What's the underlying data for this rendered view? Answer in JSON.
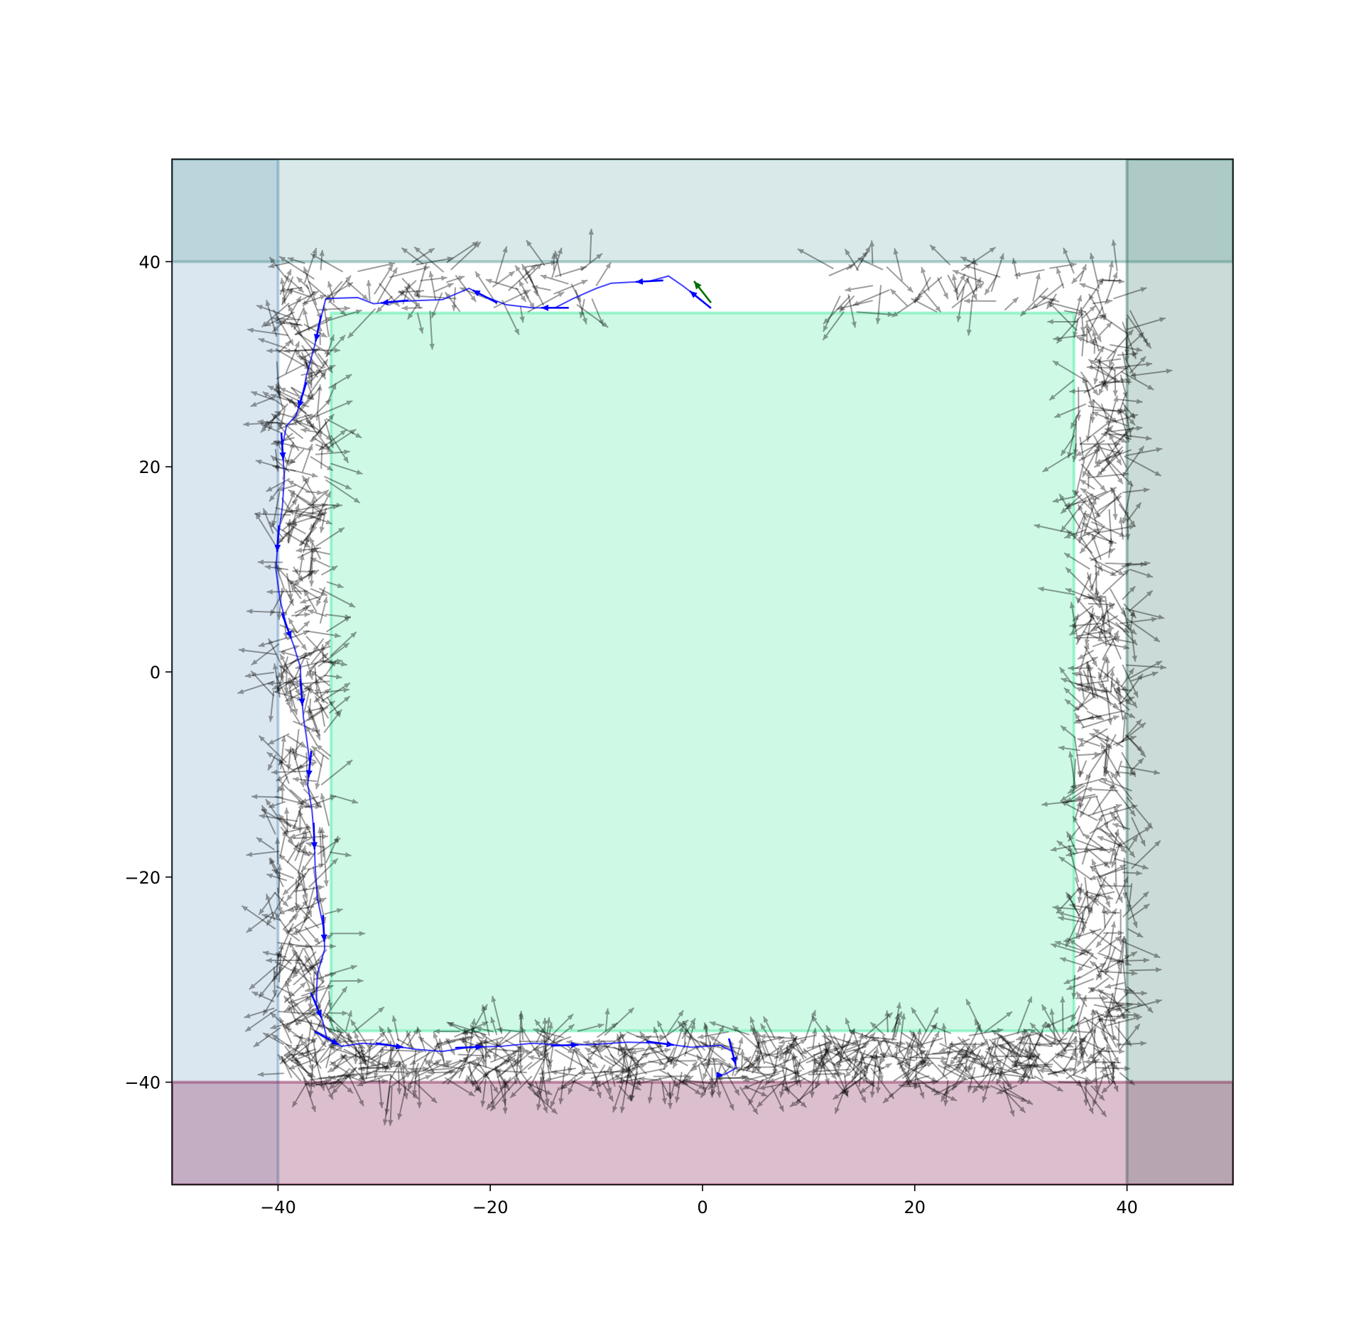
{
  "chart_data": {
    "type": "quiver",
    "title": "",
    "xlabel": "",
    "ylabel": "",
    "xlim": [
      -50,
      50
    ],
    "ylim": [
      -50,
      50
    ],
    "grid": false,
    "legend": "none",
    "x_ticks": [
      {
        "value": -40,
        "label": "−40"
      },
      {
        "value": -20,
        "label": "−20"
      },
      {
        "value": 0,
        "label": "0"
      },
      {
        "value": 20,
        "label": "20"
      },
      {
        "value": 40,
        "label": "40"
      }
    ],
    "y_ticks": [
      {
        "value": 40,
        "label": "40"
      },
      {
        "value": 20,
        "label": "20"
      },
      {
        "value": 0,
        "label": "0"
      },
      {
        "value": -20,
        "label": "−20"
      },
      {
        "value": -40,
        "label": "−40"
      }
    ],
    "regions": [
      {
        "name": "left-band",
        "x": [
          -50,
          -40
        ],
        "y": [
          -50,
          50
        ],
        "color": "#4a86b4",
        "opacity": 0.2
      },
      {
        "name": "top-band",
        "x": [
          -50,
          50
        ],
        "y": [
          40,
          50
        ],
        "color": "#3f8a8a",
        "opacity": 0.2
      },
      {
        "name": "right-band",
        "x": [
          40,
          50
        ],
        "y": [
          -50,
          50
        ],
        "color": "#2e6e60",
        "opacity": 0.25
      },
      {
        "name": "bottom-band",
        "x": [
          -50,
          50
        ],
        "y": [
          -50,
          -40
        ],
        "color": "#8a2a5c",
        "opacity": 0.3
      },
      {
        "name": "inner-goal-square",
        "x": [
          -35,
          35
        ],
        "y": [
          -35,
          35
        ],
        "color": "#45eaa0",
        "opacity": 0.27
      }
    ],
    "trajectory": {
      "color": "#0000ff",
      "points": [
        [
          -0.2,
          36.3
        ],
        [
          -0.8,
          36.8
        ],
        [
          -1.8,
          37.6
        ],
        [
          -3.2,
          38.6
        ],
        [
          -5,
          38.1
        ],
        [
          -8.6,
          37.9
        ],
        [
          -10,
          37.4
        ],
        [
          -12.2,
          36.4
        ],
        [
          -13.9,
          35.5
        ],
        [
          -16,
          35.5
        ],
        [
          -18.5,
          35.8
        ],
        [
          -20.5,
          36.6
        ],
        [
          -22,
          37.4
        ],
        [
          -24.5,
          36.3
        ],
        [
          -27,
          36.2
        ],
        [
          -29,
          36.1
        ],
        [
          -31,
          35.9
        ],
        [
          -32.5,
          36.5
        ],
        [
          -35.5,
          36.4
        ],
        [
          -36.2,
          33.5
        ],
        [
          -36.5,
          32
        ],
        [
          -37.3,
          29
        ],
        [
          -37.7,
          27
        ],
        [
          -38.3,
          25
        ],
        [
          -39.2,
          24
        ],
        [
          -39.6,
          22
        ],
        [
          -39.4,
          19
        ],
        [
          -39.6,
          16
        ],
        [
          -40,
          13
        ],
        [
          -40.2,
          10
        ],
        [
          -39.8,
          7
        ],
        [
          -39.2,
          4.5
        ],
        [
          -38.5,
          2.5
        ],
        [
          -37.9,
          0.5
        ],
        [
          -37.8,
          -2
        ],
        [
          -37.6,
          -4.5
        ],
        [
          -37.3,
          -6.5
        ],
        [
          -37,
          -9
        ],
        [
          -37.2,
          -11
        ],
        [
          -36.8,
          -13.5
        ],
        [
          -36.6,
          -16
        ],
        [
          -36.5,
          -19
        ],
        [
          -36.3,
          -22
        ],
        [
          -35.7,
          -25
        ],
        [
          -35.6,
          -27
        ],
        [
          -36.3,
          -29.5
        ],
        [
          -36.4,
          -32.5
        ],
        [
          -35.8,
          -34
        ],
        [
          -35.4,
          -35.7
        ],
        [
          -34,
          -36.5
        ],
        [
          -32,
          -36.2
        ],
        [
          -29.5,
          -36.4
        ],
        [
          -27,
          -36.8
        ],
        [
          -24.5,
          -37
        ],
        [
          -22,
          -36.6
        ],
        [
          -19,
          -36.5
        ],
        [
          -16,
          -36.2
        ],
        [
          -13,
          -36.4
        ],
        [
          -10,
          -36.3
        ],
        [
          -7,
          -36.1
        ],
        [
          -4,
          -36.2
        ],
        [
          -1,
          -36.6
        ],
        [
          1.7,
          -36.4
        ],
        [
          2.8,
          -37
        ],
        [
          3.2,
          -38.6
        ],
        [
          2,
          -39.3
        ]
      ],
      "arrow_indices": [
        0,
        4,
        8,
        11,
        15,
        19,
        22,
        25,
        28,
        31,
        34,
        37,
        40,
        43,
        46,
        48,
        51,
        54,
        57,
        60,
        63,
        65
      ]
    },
    "start_arrow": {
      "x": 0.8,
      "y": 36.0,
      "u": -1.6,
      "v": 2.1,
      "color": "#007000"
    },
    "particle_arrows": {
      "color": "#000000",
      "opacity": 0.38
    }
  }
}
